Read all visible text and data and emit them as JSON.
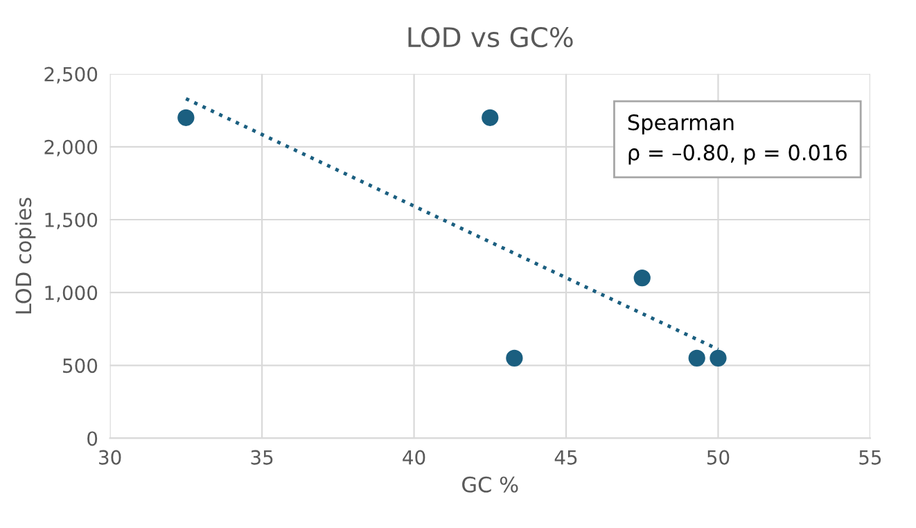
{
  "chart_data": {
    "type": "scatter",
    "title": "LOD vs GC%",
    "xlabel": "GC %",
    "ylabel": "LOD copies",
    "xlim": [
      30,
      55
    ],
    "xticks": [
      30,
      35,
      40,
      45,
      50,
      55
    ],
    "ylim": [
      0,
      2500
    ],
    "yticks": [
      {
        "value": 0,
        "label": "0"
      },
      {
        "value": 500,
        "label": "500"
      },
      {
        "value": 1000,
        "label": "1,000"
      },
      {
        "value": 1500,
        "label": "1,500"
      },
      {
        "value": 2000,
        "label": "2,000"
      },
      {
        "value": 2500,
        "label": "2,500"
      }
    ],
    "grid": true,
    "legend": false,
    "marker": "circle",
    "series": [
      {
        "color": "#1b5f80",
        "x": [
          32.5,
          42.5,
          43.3,
          47.5,
          49.3,
          50
        ],
        "values": [
          2200,
          2200,
          550,
          1100,
          550,
          550
        ]
      },
      {
        "type": "line",
        "color": "#1b5f80",
        "line_style": "dotted",
        "marker": "none",
        "x": [
          32.5,
          50
        ],
        "values": [
          2330,
          610
        ]
      }
    ],
    "annotations": [
      "Spearman\nρ = –0.80, p = 0.016"
    ]
  }
}
